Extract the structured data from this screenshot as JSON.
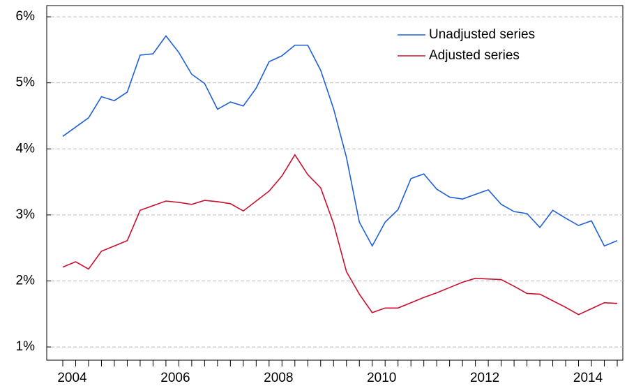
{
  "chart_data": {
    "type": "line",
    "categories": [
      null,
      "2004",
      null,
      null,
      null,
      null,
      null,
      null,
      null,
      "2006",
      null,
      null,
      null,
      null,
      null,
      null,
      null,
      "2008",
      null,
      null,
      null,
      null,
      null,
      null,
      null,
      "2010",
      null,
      null,
      null,
      null,
      null,
      null,
      null,
      "2012",
      null,
      null,
      null,
      null,
      null,
      null,
      null,
      "2014",
      null,
      null
    ],
    "series": [
      {
        "name": "Unadjusted series",
        "color": "#1f5fd6",
        "values": [
          4.19,
          4.33,
          4.47,
          4.79,
          4.73,
          4.86,
          5.42,
          5.44,
          5.71,
          5.46,
          5.13,
          4.99,
          4.6,
          4.71,
          4.65,
          4.92,
          5.32,
          5.41,
          5.57,
          5.57,
          5.19,
          4.61,
          3.87,
          2.89,
          2.53,
          2.89,
          3.08,
          3.55,
          3.62,
          3.39,
          3.27,
          3.24,
          3.31,
          3.38,
          3.16,
          3.05,
          3.02,
          2.81,
          3.07,
          2.95,
          2.84,
          2.91,
          2.53,
          2.61
        ]
      },
      {
        "name": "Adjusted series",
        "color": "#c8102e",
        "values": [
          2.21,
          2.29,
          2.18,
          2.45,
          2.53,
          2.61,
          3.07,
          3.14,
          3.21,
          3.19,
          3.16,
          3.22,
          3.2,
          3.17,
          3.06,
          3.21,
          3.36,
          3.59,
          3.91,
          3.61,
          3.41,
          2.87,
          2.14,
          1.8,
          1.52,
          1.59,
          1.59,
          1.67,
          1.75,
          1.82,
          1.9,
          1.98,
          2.04,
          2.03,
          2.02,
          1.92,
          1.81,
          1.8,
          1.7,
          1.6,
          1.49,
          1.58,
          1.67,
          1.66
        ]
      }
    ],
    "ylim": [
      0.8,
      6.17
    ],
    "yticks": [
      {
        "value": 1,
        "label": "1%"
      },
      {
        "value": 2,
        "label": "2%"
      },
      {
        "value": 3,
        "label": "3%"
      },
      {
        "value": 4,
        "label": "4%"
      },
      {
        "value": 5,
        "label": "5%"
      },
      {
        "value": 6,
        "label": "6%"
      }
    ],
    "grid": true,
    "legend": "top-right"
  }
}
